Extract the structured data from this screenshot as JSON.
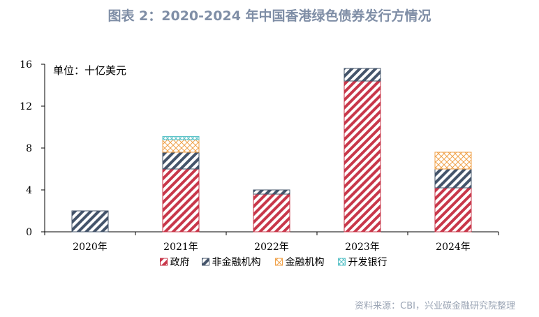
{
  "title": "图表 2：2020-2024 年中国香港绿色债券发行方情况",
  "unit_note": "单位：十亿美元",
  "source": "资料来源：CBI，兴业碳金融研究院整理",
  "colors": {
    "政府": "#c8374a",
    "非金融机构": "#44546a",
    "金融机构": "#f0a24a",
    "开发银行": "#5cc3c8"
  },
  "chart_data": {
    "type": "bar",
    "stacked": true,
    "categories": [
      "2020年",
      "2021年",
      "2022年",
      "2023年",
      "2024年"
    ],
    "series": [
      {
        "name": "政府",
        "pattern": "diagonal-stripes",
        "values": [
          0,
          6.0,
          3.6,
          14.4,
          4.2
        ]
      },
      {
        "name": "非金融机构",
        "pattern": "diagonal-stripes",
        "values": [
          2.0,
          1.6,
          0.4,
          1.2,
          1.8
        ]
      },
      {
        "name": "金融机构",
        "pattern": "crosshatch",
        "values": [
          0,
          1.2,
          0,
          0,
          1.6
        ]
      },
      {
        "name": "开发银行",
        "pattern": "crosshatch",
        "values": [
          0,
          0.3,
          0,
          0,
          0
        ]
      }
    ],
    "ylim": [
      0,
      16
    ],
    "yticks": [
      0,
      4,
      8,
      12,
      16
    ],
    "legend_position": "bottom",
    "grid": false
  }
}
